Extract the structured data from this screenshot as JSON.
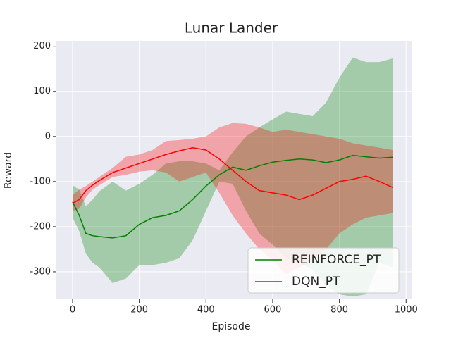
{
  "chart_data": {
    "type": "line-band",
    "title": "Lunar Lander",
    "x_label": "Episode",
    "y_label": "Reward",
    "x": [
      0,
      20,
      40,
      60,
      80,
      120,
      160,
      200,
      240,
      280,
      320,
      360,
      400,
      440,
      480,
      520,
      560,
      600,
      640,
      680,
      720,
      760,
      800,
      840,
      880,
      920,
      960
    ],
    "series": [
      {
        "name": "REINFORCE_PT",
        "color": "#008000",
        "values": [
          -145,
          -175,
          -215,
          -220,
          -222,
          -225,
          -220,
          -195,
          -180,
          -175,
          -165,
          -140,
          -110,
          -85,
          -68,
          -75,
          -65,
          -57,
          -53,
          -50,
          -52,
          -58,
          -52,
          -42,
          -45,
          -48,
          -46
        ],
        "upper": [
          -108,
          -118,
          -155,
          -140,
          -122,
          -100,
          -120,
          -105,
          -85,
          -60,
          -55,
          -55,
          -60,
          -75,
          -35,
          0,
          20,
          38,
          55,
          50,
          45,
          75,
          130,
          175,
          165,
          165,
          173
        ],
        "lower": [
          -180,
          -210,
          -260,
          -280,
          -290,
          -325,
          -315,
          -285,
          -285,
          -280,
          -270,
          -230,
          -165,
          -100,
          -105,
          -165,
          -215,
          -240,
          -270,
          -280,
          -295,
          -330,
          -350,
          -355,
          -350,
          -280,
          -290
        ]
      },
      {
        "name": "DQN_PT",
        "color": "#ff0000",
        "values": [
          -148,
          -140,
          -120,
          -108,
          -98,
          -80,
          -70,
          -60,
          -50,
          -40,
          -32,
          -25,
          -30,
          -50,
          -75,
          -100,
          -120,
          -125,
          -130,
          -140,
          -130,
          -115,
          -100,
          -95,
          -88,
          -100,
          -113
        ],
        "upper": [
          -130,
          -118,
          -110,
          -100,
          -90,
          -70,
          -45,
          -40,
          -30,
          -10,
          -8,
          -5,
          0,
          20,
          30,
          28,
          20,
          10,
          15,
          10,
          5,
          0,
          -5,
          -15,
          -20,
          -25,
          -30
        ],
        "lower": [
          -165,
          -160,
          -135,
          -118,
          -108,
          -90,
          -85,
          -78,
          -75,
          -80,
          -100,
          -90,
          -80,
          -125,
          -175,
          -215,
          -250,
          -275,
          -305,
          -290,
          -275,
          -250,
          -215,
          -195,
          -180,
          -175,
          -170
        ]
      }
    ],
    "band_opacity": 0.3,
    "xlim": [
      -48.5,
      1018.5
    ],
    "xticks": [
      0,
      200,
      400,
      600,
      800,
      1000
    ],
    "ylim": [
      -361,
      212
    ],
    "yticks": [
      -300,
      -200,
      -100,
      0,
      100,
      200
    ],
    "grid": true,
    "legend": "lower right"
  }
}
